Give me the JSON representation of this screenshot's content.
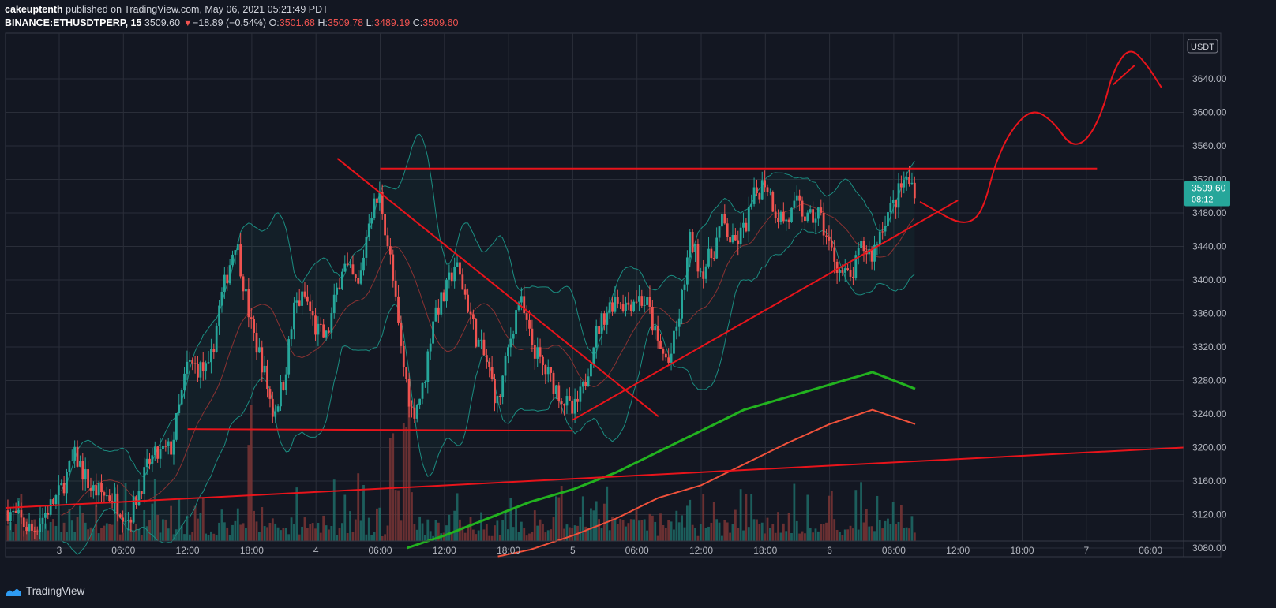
{
  "header": {
    "author": "cakeuptenth",
    "published_text": "published on TradingView.com, May 06, 2021 05:21:49 PDT",
    "symbol": "BINANCE:ETHUSDTPERP, 15",
    "last": "3509.60",
    "change": "−18.89 (−0.54%)",
    "o_label": "O:",
    "o": "3501.68",
    "h_label": "H:",
    "h": "3509.78",
    "l_label": "L:",
    "l": "3489.19",
    "c_label": "C:",
    "c": "3509.60"
  },
  "footer": {
    "brand": "TradingView"
  },
  "colors": {
    "background": "#131722",
    "grid": "#2a2e39",
    "up": "#26a69a",
    "down": "#ef5350",
    "drawing": "#e8141b",
    "ma_fast": "#22b21f",
    "ma_slow": "#f0513b",
    "band": "#1b8c80"
  },
  "chart_data": {
    "type": "candlestick",
    "currency_label": "USDT",
    "price_tag": {
      "value": 3509.6,
      "label": "3509.60",
      "countdown": "08:12"
    },
    "y_ticks": [
      {
        "value": 3080,
        "label": "3080.00"
      },
      {
        "value": 3120,
        "label": "3120.00"
      },
      {
        "value": 3160,
        "label": "3160.00"
      },
      {
        "value": 3200,
        "label": "3200.00"
      },
      {
        "value": 3240,
        "label": "3240.00"
      },
      {
        "value": 3280,
        "label": "3280.00"
      },
      {
        "value": 3320,
        "label": "3320.00"
      },
      {
        "value": 3360,
        "label": "3360.00"
      },
      {
        "value": 3400,
        "label": "3400.00"
      },
      {
        "value": 3440,
        "label": "3440.00"
      },
      {
        "value": 3480,
        "label": "3480.00"
      },
      {
        "value": 3520,
        "label": "3520.00"
      },
      {
        "value": 3560,
        "label": "3560.00"
      },
      {
        "value": 3600,
        "label": "3600.00"
      },
      {
        "value": 3640,
        "label": "3640.00"
      }
    ],
    "x_ticks": [
      {
        "t": 0,
        "label": "3"
      },
      {
        "t": 6,
        "label": "06:00"
      },
      {
        "t": 12,
        "label": "12:00"
      },
      {
        "t": 18,
        "label": "18:00"
      },
      {
        "t": 24,
        "label": "4"
      },
      {
        "t": 30,
        "label": "06:00"
      },
      {
        "t": 36,
        "label": "12:00"
      },
      {
        "t": 42,
        "label": "18:00"
      },
      {
        "t": 48,
        "label": "5"
      },
      {
        "t": 54,
        "label": "06:00"
      },
      {
        "t": 60,
        "label": "12:00"
      },
      {
        "t": 66,
        "label": "18:00"
      },
      {
        "t": 72,
        "label": "6"
      },
      {
        "t": 78,
        "label": "06:00"
      },
      {
        "t": 84,
        "label": "12:00"
      },
      {
        "t": 90,
        "label": "18:00"
      },
      {
        "t": 96,
        "label": "7"
      },
      {
        "t": 102,
        "label": "06:00"
      }
    ],
    "price_path": [
      [
        -4.8,
        3125
      ],
      [
        -2.5,
        3100
      ],
      [
        0,
        3145
      ],
      [
        1.5,
        3190
      ],
      [
        3,
        3150
      ],
      [
        5,
        3140
      ],
      [
        6.5,
        3115
      ],
      [
        8.5,
        3185
      ],
      [
        10.5,
        3200
      ],
      [
        12,
        3300
      ],
      [
        14,
        3290
      ],
      [
        15,
        3370
      ],
      [
        16.5,
        3450
      ],
      [
        18,
        3340
      ],
      [
        19,
        3300
      ],
      [
        20,
        3240
      ],
      [
        21,
        3280
      ],
      [
        22,
        3370
      ],
      [
        23,
        3380
      ],
      [
        24,
        3340
      ],
      [
        25,
        3330
      ],
      [
        26.5,
        3420
      ],
      [
        28,
        3390
      ],
      [
        29,
        3480
      ],
      [
        30,
        3500
      ],
      [
        31,
        3420
      ],
      [
        32,
        3310
      ],
      [
        33,
        3240
      ],
      [
        34,
        3270
      ],
      [
        35,
        3360
      ],
      [
        36,
        3380
      ],
      [
        37,
        3420
      ],
      [
        38,
        3380
      ],
      [
        39,
        3330
      ],
      [
        40,
        3300
      ],
      [
        41,
        3250
      ],
      [
        42,
        3320
      ],
      [
        43,
        3380
      ],
      [
        44,
        3330
      ],
      [
        45,
        3300
      ],
      [
        46,
        3280
      ],
      [
        47,
        3260
      ],
      [
        48,
        3240
      ],
      [
        49,
        3270
      ],
      [
        50,
        3330
      ],
      [
        51,
        3360
      ],
      [
        52,
        3380
      ],
      [
        53,
        3370
      ],
      [
        54,
        3380
      ],
      [
        55,
        3370
      ],
      [
        56,
        3320
      ],
      [
        57,
        3300
      ],
      [
        58,
        3360
      ],
      [
        59,
        3450
      ],
      [
        60,
        3410
      ],
      [
        61,
        3430
      ],
      [
        62,
        3470
      ],
      [
        63,
        3440
      ],
      [
        64,
        3460
      ],
      [
        65,
        3500
      ],
      [
        66,
        3520
      ],
      [
        67,
        3480
      ],
      [
        68,
        3470
      ],
      [
        69,
        3490
      ],
      [
        70,
        3470
      ],
      [
        71,
        3480
      ],
      [
        72,
        3440
      ],
      [
        73,
        3410
      ],
      [
        74,
        3400
      ],
      [
        75,
        3440
      ],
      [
        76,
        3430
      ],
      [
        77,
        3470
      ],
      [
        78,
        3490
      ],
      [
        79,
        3520
      ],
      [
        80,
        3510
      ]
    ],
    "ma_fast": [
      [
        32.5,
        3080
      ],
      [
        36,
        3095
      ],
      [
        40,
        3115
      ],
      [
        44,
        3135
      ],
      [
        48,
        3150
      ],
      [
        52,
        3170
      ],
      [
        56,
        3195
      ],
      [
        60,
        3220
      ],
      [
        64,
        3245
      ],
      [
        68,
        3260
      ],
      [
        72,
        3275
      ],
      [
        76,
        3290
      ],
      [
        80,
        3270
      ]
    ],
    "ma_slow": [
      [
        41,
        3070
      ],
      [
        44,
        3078
      ],
      [
        48,
        3095
      ],
      [
        52,
        3115
      ],
      [
        56,
        3140
      ],
      [
        60,
        3155
      ],
      [
        64,
        3180
      ],
      [
        68,
        3205
      ],
      [
        72,
        3228
      ],
      [
        76,
        3245
      ],
      [
        80,
        3228
      ]
    ],
    "drawings": {
      "support_line": [
        [
          -5,
          3128
        ],
        [
          106,
          3200
        ]
      ],
      "triangle_base": [
        [
          12,
          3222
        ],
        [
          48,
          3220
        ]
      ],
      "triangle_resistance": [
        [
          26,
          3545
        ],
        [
          56,
          3237
        ]
      ],
      "top_resistance": [
        [
          30,
          3533
        ],
        [
          97,
          3533
        ]
      ],
      "rising_support": [
        [
          48,
          3233
        ],
        [
          84,
          3495
        ]
      ],
      "forecast_path": [
        [
          80.5,
          3493
        ],
        [
          82,
          3482
        ],
        [
          84,
          3468
        ],
        [
          85.5,
          3470
        ],
        [
          86.5,
          3490
        ],
        [
          87.5,
          3540
        ],
        [
          89,
          3580
        ],
        [
          91,
          3605
        ],
        [
          93,
          3588
        ],
        [
          94.5,
          3560
        ],
        [
          96,
          3565
        ],
        [
          97.5,
          3600
        ],
        [
          98.5,
          3650
        ],
        [
          100,
          3678
        ],
        [
          101.5,
          3660
        ],
        [
          103,
          3630
        ]
      ],
      "forecast_hook": [
        [
          98.5,
          3633
        ],
        [
          100.5,
          3656
        ]
      ]
    }
  }
}
